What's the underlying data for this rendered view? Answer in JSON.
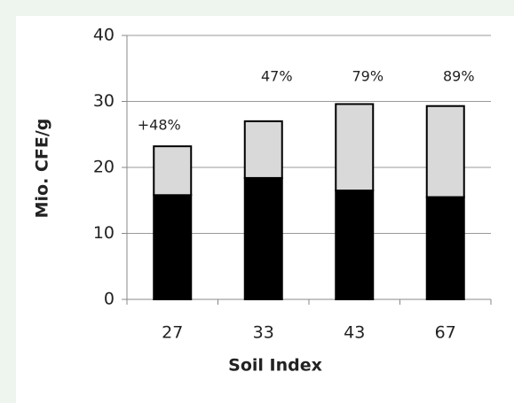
{
  "chart_data": {
    "type": "stacked_bar",
    "x_label": "Soil Index",
    "y_label": "Mio. CFE/g",
    "categories": [
      "27",
      "33",
      "43",
      "67"
    ],
    "series": [
      {
        "color": "#000000",
        "values": [
          15.8,
          18.4,
          16.5,
          15.5
        ]
      },
      {
        "color": "#d9d9d9",
        "values": [
          7.4,
          8.6,
          13.1,
          13.8
        ]
      }
    ],
    "annotations": [
      "+48%",
      "47%",
      "79%",
      "89%"
    ],
    "ylim": [
      0,
      40
    ],
    "yticks": [
      0,
      10,
      20,
      30,
      40
    ],
    "grid": true
  }
}
